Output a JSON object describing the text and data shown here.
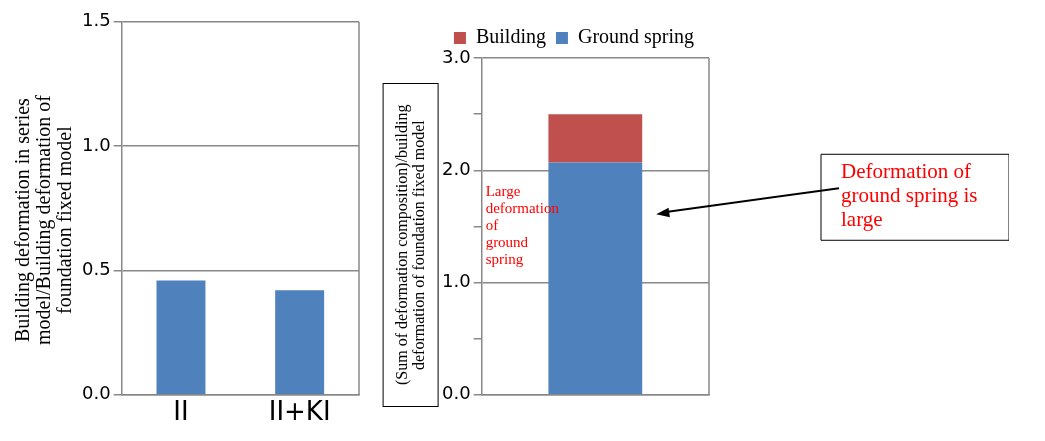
{
  "chart_data": [
    {
      "type": "bar",
      "categories": [
        "II",
        "II+KI"
      ],
      "values": [
        0.46,
        0.42
      ],
      "color": "#4f81bd",
      "ylim": [
        0,
        1.5
      ],
      "yticks": [
        {
          "value": 0,
          "label": "0.0"
        },
        {
          "value": 0.5,
          "label": "0.5"
        },
        {
          "value": 1,
          "label": "1.0"
        },
        {
          "value": 1.5,
          "label": "1.5"
        }
      ],
      "grid": "y",
      "ylabel": "Building deformation in series model/Building deformation of foundation fixed model"
    },
    {
      "type": "bar",
      "stacked": true,
      "categories": [
        null
      ],
      "series": [
        {
          "name": "Ground spring",
          "color": "#4f81bd",
          "values": [
            2.07
          ]
        },
        {
          "name": "Building",
          "color": "#c0504d",
          "values": [
            0.43
          ]
        }
      ],
      "ylim": [
        0,
        3
      ],
      "yticks": [
        {
          "value": 0,
          "label": "0.0"
        },
        {
          "value": 0.5,
          "label": null
        },
        {
          "value": 1,
          "label": "1.0"
        },
        {
          "value": 1.5,
          "label": null
        },
        {
          "value": 2,
          "label": "2.0"
        },
        {
          "value": 2.5,
          "label": null
        },
        {
          "value": 3,
          "label": "3.0"
        }
      ],
      "grid": "y",
      "legend": "top",
      "ylabel": "(Sum of deformation composition)/building deformation of foundation fixed model",
      "annotations": [
        "Large deformation of ground spring",
        "Deformation of ground spring is large"
      ]
    }
  ]
}
